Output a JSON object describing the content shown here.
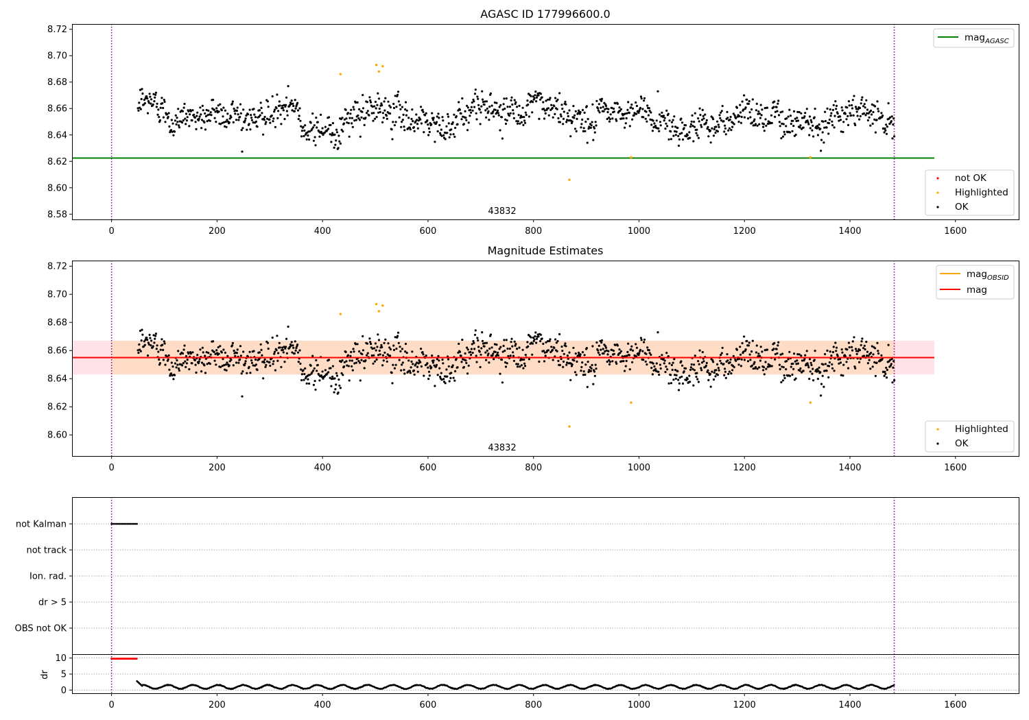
{
  "chart_data": [
    {
      "type": "scatter",
      "title": "AGASC ID 177996600.0",
      "xlim": [
        -75,
        1720
      ],
      "ylim": [
        8.576,
        8.724
      ],
      "xticks": [
        0,
        200,
        400,
        600,
        800,
        1000,
        1200,
        1400,
        1600
      ],
      "yticks": [
        8.58,
        8.6,
        8.62,
        8.64,
        8.66,
        8.68,
        8.7,
        8.72
      ],
      "obsid_label": "43832",
      "obsid_label_x": 745,
      "vlines_x": [
        0,
        1484
      ],
      "hline": {
        "y": 8.6225,
        "x_range": [
          -75,
          1560
        ],
        "color": "#008000"
      },
      "legend_lines": [
        {
          "base": "mag",
          "sub": "AGASC",
          "color": "#008000"
        }
      ],
      "legend_points": [
        {
          "label": "not OK",
          "color": "#ff0000"
        },
        {
          "label": "Highlighted",
          "color": "#ffa500"
        },
        {
          "label": "OK",
          "color": "#000000"
        }
      ],
      "series": [
        {
          "name": "OK",
          "color": "#000000",
          "x_range": [
            50,
            1484
          ],
          "n": 1300,
          "mean": 8.655,
          "sigma": 0.009
        },
        {
          "name": "Highlighted",
          "color": "#ffa500",
          "points": [
            [
              434,
              8.686
            ],
            [
              502,
              8.693
            ],
            [
              507,
              8.688
            ],
            [
              514,
              8.692
            ],
            [
              868,
              8.606
            ],
            [
              985,
              8.623
            ],
            [
              1325,
              8.623
            ]
          ]
        }
      ]
    },
    {
      "type": "scatter",
      "title": "Magnitude Estimates",
      "xlim": [
        -75,
        1720
      ],
      "ylim": [
        8.585,
        8.724
      ],
      "xticks": [
        0,
        200,
        400,
        600,
        800,
        1000,
        1200,
        1400,
        1600
      ],
      "yticks": [
        8.6,
        8.62,
        8.64,
        8.66,
        8.68,
        8.7,
        8.72
      ],
      "obsid_label": "43832",
      "obsid_label_x": 745,
      "vlines_x": [
        0,
        1484
      ],
      "band_outer": {
        "y": [
          8.643,
          8.667
        ],
        "x_range": [
          -75,
          1560
        ],
        "color": "#ffc0cb"
      },
      "band_inner": {
        "y": [
          8.643,
          8.667
        ],
        "x_range": [
          0,
          1484
        ],
        "color": "#ffdab9"
      },
      "mag_line": {
        "y": 8.655,
        "color": "#ff0000"
      },
      "obsid_line": {
        "y": 8.655,
        "x_range": [
          0,
          1484
        ],
        "color": "#ffa500"
      },
      "legend_lines": [
        {
          "base": "mag",
          "sub": "OBSID",
          "color": "#ffa500"
        },
        {
          "base": "mag",
          "sub": "",
          "color": "#ff0000"
        }
      ],
      "legend_points": [
        {
          "label": "Highlighted",
          "color": "#ffa500"
        },
        {
          "label": "OK",
          "color": "#000000"
        }
      ]
    },
    {
      "type": "scatter",
      "xlim": [
        -75,
        1720
      ],
      "xticks": [
        0,
        200,
        400,
        600,
        800,
        1000,
        1200,
        1400,
        1600
      ],
      "flag_categories": [
        "not Kalman",
        "not track",
        "Ion. rad.",
        "dr > 5",
        "OBS not OK"
      ],
      "flag_series": [
        {
          "category": "not Kalman",
          "x_range": [
            0,
            48
          ]
        }
      ],
      "dr": {
        "ylabel": "dr",
        "yticks": [
          0,
          5,
          10
        ],
        "ylim": [
          -1,
          11
        ],
        "clipped_x_range": [
          0,
          48
        ],
        "clipped_value": 9.8,
        "x_range": [
          48,
          1484
        ],
        "typical_range": [
          0.2,
          2.0
        ]
      },
      "vlines_x": [
        0,
        1484
      ]
    }
  ]
}
